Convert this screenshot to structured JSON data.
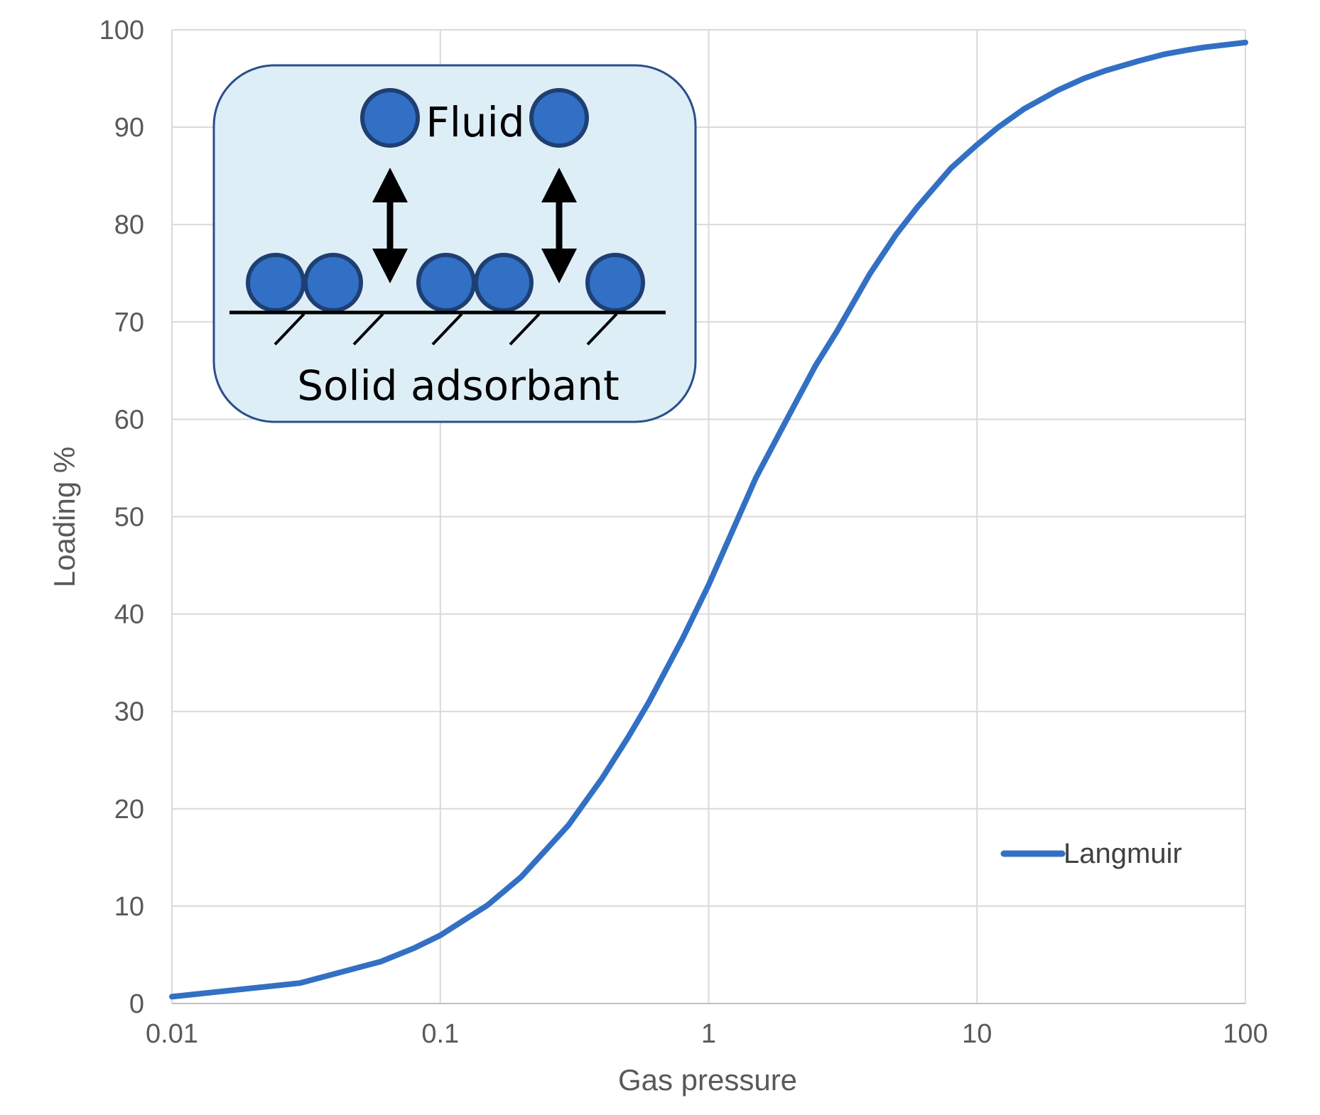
{
  "chart_data": {
    "type": "line",
    "xscale": "log",
    "xlim": [
      0.01,
      100
    ],
    "ylim": [
      0,
      100
    ],
    "xticks": [
      "0.01",
      "0.1",
      "1",
      "10",
      "100"
    ],
    "yticks": [
      "0",
      "10",
      "20",
      "30",
      "40",
      "50",
      "60",
      "70",
      "80",
      "90",
      "100"
    ],
    "xlabel": "Gas pressure",
    "ylabel": "Loading %",
    "grid": true,
    "legend_position": "bottom-right",
    "series": [
      {
        "name": "Langmuir",
        "color": "#3370c4",
        "x": [
          0.01,
          0.03,
          0.06,
          0.08,
          0.1,
          0.15,
          0.2,
          0.3,
          0.4,
          0.5,
          0.6,
          0.8,
          1,
          1.5,
          2,
          2.5,
          3,
          4,
          5,
          6,
          8,
          10,
          12,
          15,
          20,
          25,
          30,
          40,
          50,
          60,
          70,
          100
        ],
        "y": [
          0.7,
          2.1,
          4.3,
          5.7,
          7.0,
          10.1,
          13.0,
          18.3,
          23.1,
          27.3,
          31.0,
          37.5,
          43.0,
          54.0,
          60.5,
          65.5,
          69.0,
          75.0,
          79.0,
          81.8,
          85.8,
          88.2,
          90.0,
          91.9,
          93.8,
          95.0,
          95.8,
          96.8,
          97.5,
          97.9,
          98.2,
          98.7
        ]
      }
    ],
    "inset": {
      "top_label": "Fluid",
      "bottom_label": "Solid adsorbant",
      "background": "#deeef7",
      "border": "#2a4f8a",
      "particle_color": "#3170c4",
      "particle_outline": "#1f3f73"
    }
  }
}
